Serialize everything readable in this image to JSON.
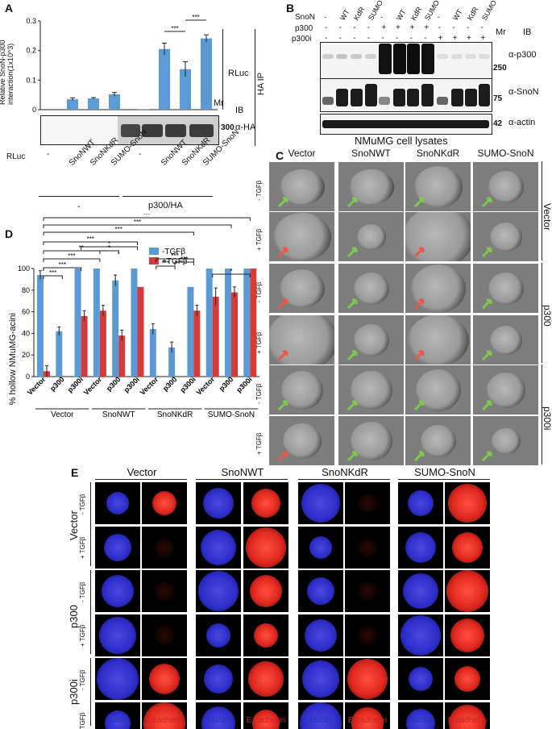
{
  "panels": {
    "A": "A",
    "B": "B",
    "C": "C",
    "D": "D",
    "E": "E"
  },
  "panelA": {
    "ylabel_line1": "Relative SnoN-p300",
    "ylabel_line2": "interaction(1x10^3)",
    "yticks": [
      "0.3",
      "0.2",
      "0.1",
      "0"
    ],
    "rluc": "RLuc",
    "ha_ip": "HA IP",
    "ib": "IB",
    "mr": "Mr",
    "mr_value": "300",
    "alpha_ha": "α-HA",
    "row_label": "RLuc",
    "lanes": [
      "-",
      "SnoNWT",
      "SnoNKdR",
      "SUMO-SnoN",
      "-",
      "SnoNWT",
      "SnoNKdR",
      "SUMO-SnoN"
    ],
    "group1": "-",
    "group2": "p300/HA",
    "sig": "***"
  },
  "panelB": {
    "row_snon": "SnoN",
    "row_p300": "p300",
    "row_p300i": "p300i",
    "snon_vals": [
      "-",
      "WT",
      "KdR",
      "SUMO",
      "-",
      "WT",
      "KdR",
      "SUMO",
      "-",
      "WT",
      "KdR",
      "SUMO"
    ],
    "p300_vals": [
      "-",
      "-",
      "-",
      "-",
      "+",
      "+",
      "+",
      "+",
      "-",
      "-",
      "-",
      "-"
    ],
    "p300i_vals": [
      "-",
      "-",
      "-",
      "-",
      "-",
      "-",
      "-",
      "-",
      "+",
      "+",
      "+",
      "+"
    ],
    "mr": "Mr",
    "ib": "IB",
    "ab1": "α-p300",
    "ab2": "α-SnoN",
    "ab3": "α-actin",
    "mr1": "250",
    "mr2": "75",
    "mr3": "42",
    "caption": "NMuMG cell lysates"
  },
  "panelC": {
    "columns": [
      "Vector",
      "SnoNWT",
      "SnoNKdR",
      "SUMO-SnoN"
    ],
    "rows": [
      "- TGFβ",
      "+ TGFβ",
      "- TGFβ",
      "+ TGFβ",
      "- TGFβ",
      "+ TGFβ"
    ],
    "groups": [
      "Vector",
      "p300",
      "p300i"
    ]
  },
  "chart_data": {
    "type": "bar",
    "ylabel": "% hollow NMuMG-acini",
    "ylim": [
      0,
      100
    ],
    "yticks": [
      "100",
      "80",
      "60",
      "40",
      "20",
      "0"
    ],
    "categories": [
      "Vector",
      "p300",
      "p300i",
      "Vector",
      "p300",
      "p300i",
      "Vector",
      "p300",
      "p300i",
      "Vector",
      "p300",
      "p300i"
    ],
    "groups": [
      "Vector",
      "SnoNWT",
      "SnoNKdR",
      "SUMO-SnoN"
    ],
    "series": [
      {
        "name": "-TGFβ",
        "color": "#5b9bd5",
        "values": [
          94,
          42,
          100,
          100,
          89,
          100,
          44,
          27,
          83,
          100,
          100,
          100
        ],
        "errors": [
          4,
          4,
          0,
          0,
          5,
          0,
          5,
          5,
          0,
          0,
          0,
          0
        ]
      },
      {
        "name": "+TGFβ",
        "color": "#d63b3b",
        "values": [
          5,
          0,
          56,
          61,
          38,
          83,
          0,
          0,
          61,
          74,
          78,
          100
        ],
        "errors": [
          5,
          0,
          5,
          5,
          5,
          0,
          0,
          0,
          5,
          8,
          5,
          0
        ]
      }
    ],
    "significance": "***",
    "sig2": "**",
    "sig3": "*"
  },
  "panelE": {
    "columns": [
      "Vector",
      "SnoNWT",
      "SnoNKdR",
      "SUMO-SnoN"
    ],
    "row_groups": [
      "Vector",
      "p300",
      "p300i"
    ],
    "rows": [
      "- TGFβ",
      "+ TGFβ"
    ],
    "bottom": [
      "Nuclei",
      "E-cadherin",
      "Nuclei",
      "E-cadherin",
      "Nuclei",
      "E-cadherin",
      "Nuclei",
      "E-cadherin"
    ]
  },
  "colors": {
    "blue": "#5b9bd5",
    "red": "#d63b3b",
    "green": "#7ec850",
    "arrow_red": "#e8584f",
    "nuclei_text": "#2233bb",
    "ecad_text": "#cc2222"
  }
}
